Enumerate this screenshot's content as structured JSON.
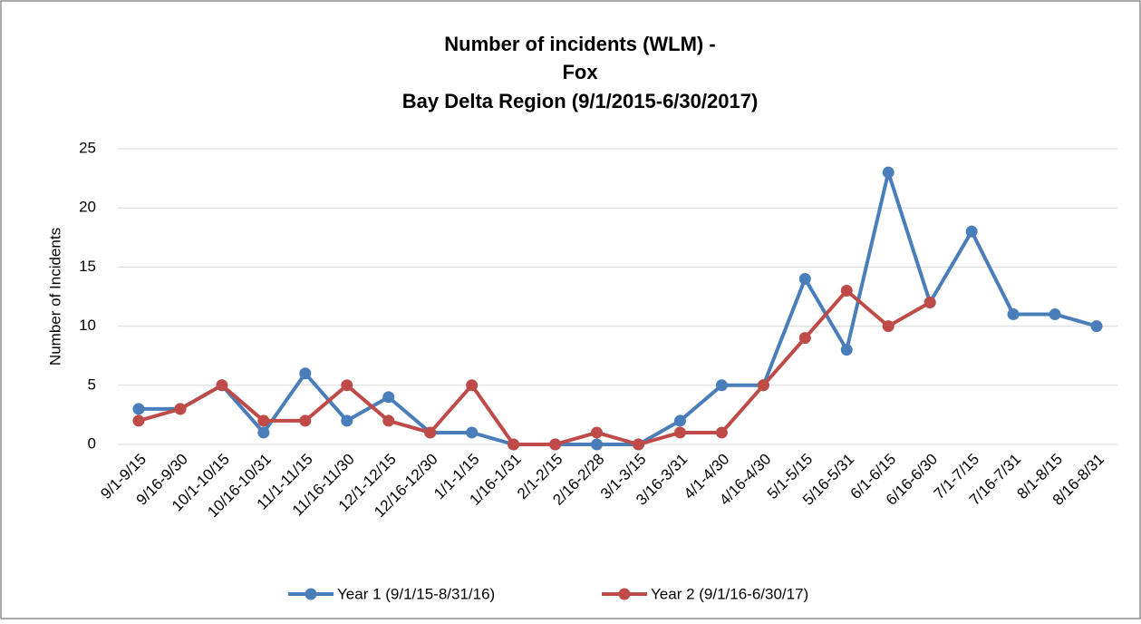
{
  "chart_data": {
    "type": "line",
    "title": [
      "Number of incidents (WLM) -",
      "Fox",
      "Bay Delta Region (9/1/2015-6/30/2017)"
    ],
    "ylabel": "Number of Incidents",
    "categories": [
      "9/1-9/15",
      "9/16-9/30",
      "10/1-10/15",
      "10/16-10/31",
      "11/1-11/15",
      "11/16-11/30",
      "12/1-12/15",
      "12/16-12/30",
      "1/1-1/15",
      "1/16-1/31",
      "2/1-2/15",
      "2/16-2/28",
      "3/1-3/15",
      "3/16-3/31",
      "4/1-4/30",
      "4/16-4/30",
      "5/1-5/15",
      "5/16-5/31",
      "6/1-6/15",
      "6/16-6/30",
      "7/1-7/15",
      "7/16-7/31",
      "8/1-8/15",
      "8/16-8/31"
    ],
    "series": [
      {
        "name": "Year 1 (9/1/15-8/31/16)",
        "color": "#4a7ebb",
        "values": [
          3,
          3,
          5,
          1,
          6,
          2,
          4,
          1,
          1,
          0,
          0,
          0,
          0,
          2,
          5,
          5,
          14,
          8,
          23,
          12,
          18,
          11,
          11,
          10
        ]
      },
      {
        "name": "Year 2 (9/1/16-6/30/17)",
        "color": "#be4b48",
        "values": [
          2,
          3,
          5,
          2,
          2,
          5,
          2,
          1,
          5,
          0,
          0,
          1,
          0,
          1,
          1,
          5,
          9,
          13,
          10,
          12,
          null,
          null,
          null,
          null
        ]
      }
    ],
    "ylim": [
      0,
      25
    ],
    "yticks": [
      0,
      5,
      10,
      15,
      20,
      25
    ],
    "grid": true,
    "legend": "bottom"
  }
}
